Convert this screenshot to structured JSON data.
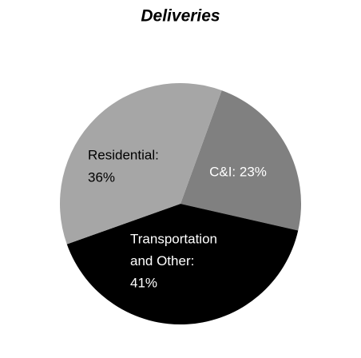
{
  "chart_data": {
    "type": "pie",
    "title": "Deliveries",
    "values": [
      23,
      41,
      36
    ],
    "value_labels": [
      [
        "C&I: 23%"
      ],
      [
        "Transportation",
        "and Other:",
        "41%"
      ],
      [
        "Residential:",
        "36%"
      ]
    ],
    "colors": [
      "#808080",
      "#000000",
      "#a6a6a6"
    ],
    "label_colors": [
      "#ffffff",
      "#ffffff",
      "#000000"
    ]
  }
}
